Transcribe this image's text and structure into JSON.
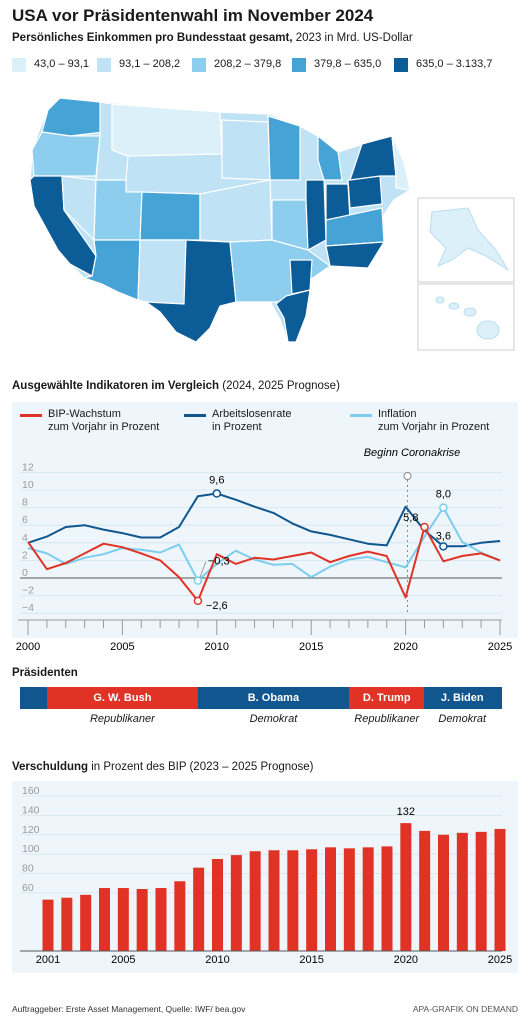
{
  "header": {
    "title": "USA vor Präsidentenwahl im November 2024",
    "subtitle_bold": "Persönliches Einkommen pro Bundesstaat gesamt,",
    "subtitle_rest": " 2023 in Mrd. US-Dollar"
  },
  "map_legend": [
    {
      "label": "43,0 – 93,1",
      "color": "#dcf0fa"
    },
    {
      "label": "93,1 – 208,2",
      "color": "#bfe3f5"
    },
    {
      "label": "208,2 – 379,8",
      "color": "#8dcdee"
    },
    {
      "label": "379,8 – 635,0",
      "color": "#46a3d6"
    },
    {
      "label": "635,0 – 3.133,7",
      "color": "#0c5c97"
    }
  ],
  "indicators": {
    "heading_bold": "Ausgewählte Indikatoren im Vergleich",
    "heading_rest": " (2024, 2025 Prognose)",
    "legend": [
      {
        "line1": "BIP-Wachstum",
        "line2": "zum Vorjahr in Prozent",
        "color": "#e03325"
      },
      {
        "line1": "Arbeitslosenrate",
        "line2": "in Prozent",
        "color": "#11568f"
      },
      {
        "line1": "Inflation",
        "line2": "zum Vorjahr in Prozent",
        "color": "#7dcdee"
      }
    ],
    "annotation": "Beginn Coronakrise",
    "callouts": [
      "9,6",
      "−0,3",
      "−2,6",
      "5,8",
      "8,0",
      "3,6"
    ]
  },
  "chart_data": [
    {
      "type": "line",
      "x": [
        2000,
        2001,
        2002,
        2003,
        2004,
        2005,
        2006,
        2007,
        2008,
        2009,
        2010,
        2011,
        2012,
        2013,
        2014,
        2015,
        2016,
        2017,
        2018,
        2019,
        2020,
        2021,
        2022,
        2023,
        2024,
        2025
      ],
      "series": [
        {
          "name": "BIP-Wachstum zum Vorjahr in Prozent",
          "values": [
            4.1,
            1.0,
            1.7,
            2.8,
            3.9,
            3.5,
            2.8,
            2.0,
            0.1,
            -2.6,
            2.7,
            1.6,
            2.3,
            2.1,
            2.5,
            2.9,
            1.8,
            2.5,
            3.0,
            2.5,
            -2.2,
            5.8,
            1.9,
            2.5,
            2.8,
            2.0
          ]
        },
        {
          "name": "Arbeitslosenrate in Prozent",
          "values": [
            4.0,
            4.7,
            5.8,
            6.0,
            5.5,
            5.1,
            4.6,
            4.6,
            5.8,
            9.3,
            9.6,
            8.9,
            8.1,
            7.4,
            6.2,
            5.3,
            4.9,
            4.4,
            3.9,
            3.7,
            8.1,
            5.4,
            3.6,
            3.6,
            4.0,
            4.2
          ]
        },
        {
          "name": "Inflation zum Vorjahr in Prozent",
          "values": [
            3.4,
            2.8,
            1.6,
            2.3,
            2.7,
            3.4,
            3.2,
            2.9,
            3.8,
            -0.3,
            1.6,
            3.1,
            2.1,
            1.5,
            1.6,
            0.1,
            1.3,
            2.1,
            2.4,
            1.8,
            1.2,
            4.7,
            8.0,
            4.1,
            2.9,
            2.0
          ]
        }
      ],
      "y_ticks": [
        12,
        10,
        8,
        6,
        4,
        2,
        0,
        -2,
        -4
      ],
      "x_ticks": [
        2000,
        2005,
        2010,
        2015,
        2020,
        2025
      ],
      "ylim": [
        -5,
        13
      ]
    },
    {
      "type": "bar",
      "title": "Verschuldung",
      "subtitle": " in Prozent des BIP (2023 – 2025 Prognose)",
      "categories": [
        2001,
        2002,
        2003,
        2004,
        2005,
        2006,
        2007,
        2008,
        2009,
        2010,
        2011,
        2012,
        2013,
        2014,
        2015,
        2016,
        2017,
        2018,
        2019,
        2020,
        2021,
        2022,
        2023,
        2024,
        2025
      ],
      "values": [
        53,
        55,
        58,
        65,
        65,
        64,
        65,
        72,
        86,
        95,
        99,
        103,
        104,
        104,
        105,
        107,
        106,
        107,
        108,
        132,
        124,
        120,
        122,
        123,
        126
      ],
      "y_ticks": [
        160,
        140,
        120,
        100,
        80,
        60
      ],
      "x_ticks": [
        2001,
        2005,
        2010,
        2015,
        2020,
        2025
      ],
      "peak_label": "132",
      "ylim": [
        0,
        160
      ]
    }
  ],
  "presidents": {
    "heading": "Präsidenten",
    "segments": [
      {
        "name": "G. W. Bush",
        "party": "Republikaner",
        "start": 2001,
        "end": 2009,
        "color": "#e03325"
      },
      {
        "name": "B. Obama",
        "party": "Demokrat",
        "start": 2009,
        "end": 2017,
        "color": "#11568f"
      },
      {
        "name": "D. Trump",
        "party": "Republikaner",
        "start": 2017,
        "end": 2021,
        "color": "#e03325"
      },
      {
        "name": "J. Biden",
        "party": "Demokrat",
        "start": 2021,
        "end": 2025,
        "color": "#11568f"
      }
    ]
  },
  "footer": {
    "left": "Auftraggeber: Erste Asset Management, Quelle: IWF/ bea.gov",
    "right": "APA-GRAFIK ON DEMAND"
  }
}
